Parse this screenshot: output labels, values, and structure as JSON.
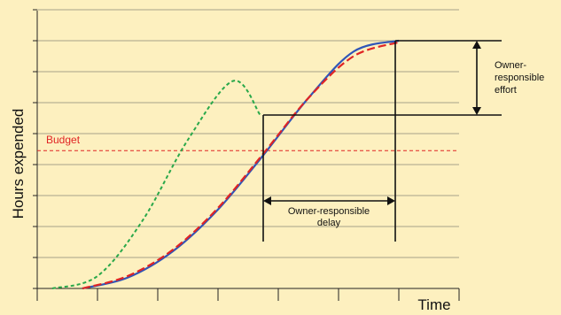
{
  "chart_data": {
    "type": "line",
    "title": "",
    "xlabel": "Time",
    "ylabel": "Hours expended",
    "grid": true,
    "x_ticks": 7,
    "y_gridlines": 9,
    "budget_label": "Budget",
    "budget_value": 4.45,
    "ylim": [
      0,
      9
    ],
    "xlim": [
      0,
      7
    ],
    "series": [
      {
        "color": "#2f55b8",
        "style": "solid",
        "x": [
          0.75,
          1.5,
          2.25,
          3.0,
          3.75,
          4.5,
          5.25,
          6.0
        ],
        "y": [
          0.0,
          0.35,
          1.2,
          2.55,
          4.3,
          6.15,
          7.65,
          8.0
        ]
      },
      {
        "color": "#e02424",
        "style": "dashed",
        "x": [
          0.75,
          1.5,
          2.25,
          3.0,
          3.75,
          4.5,
          5.25,
          6.0
        ],
        "y": [
          0.0,
          0.4,
          1.25,
          2.6,
          4.35,
          6.15,
          7.5,
          7.95
        ]
      },
      {
        "color": "#2aa84a",
        "style": "dashed",
        "x": [
          0.25,
          1.0,
          1.75,
          2.5,
          3.25,
          3.7
        ],
        "y": [
          0.0,
          0.4,
          2.2,
          4.8,
          6.7,
          5.6
        ]
      }
    ],
    "annotations": {
      "delay_label_line1": "Owner-responsible",
      "delay_label_line2": "delay",
      "effort_label_line1": "Owner-",
      "effort_label_line2": "responsible",
      "effort_label_line3": "effort"
    }
  },
  "colors": {
    "background": "#fdf0bf",
    "grid": "#555555",
    "budget": "#e02424",
    "blue_curve": "#2f55b8",
    "red_curve": "#e02424",
    "green_curve": "#2aa84a"
  }
}
